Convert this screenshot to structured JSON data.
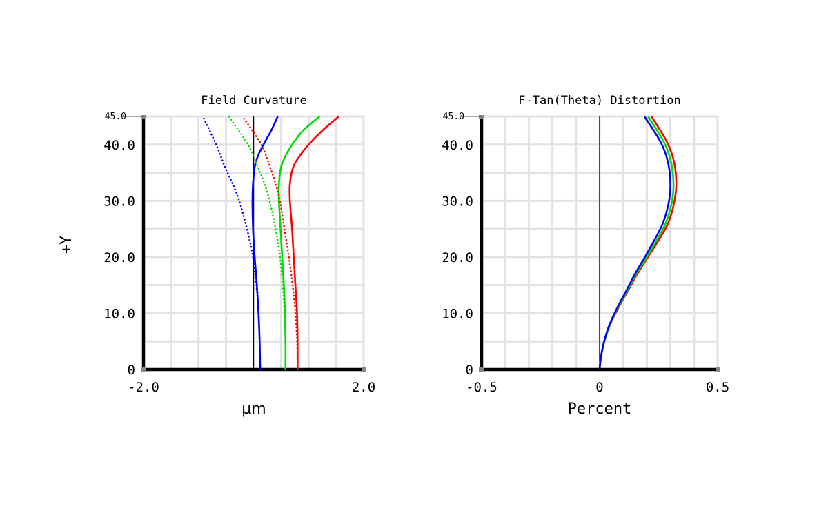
{
  "y_axis_label": "+Y",
  "chart_data": [
    {
      "type": "line",
      "title": "Field Curvature",
      "xlabel": "µm",
      "ylabel": "+Y",
      "xlim": [
        -2.0,
        2.0
      ],
      "ylim": [
        0,
        45.0
      ],
      "x_tick_labels": [
        "-2.0",
        "2.0"
      ],
      "y_tick_labels": [
        "0",
        "10.0",
        "20.0",
        "30.0",
        "40.0"
      ],
      "y_max_label": "45.0",
      "grid": true,
      "series": [
        {
          "color": "#0000ff",
          "style": "solid",
          "x": [
            0.12,
            0.11,
            0.09,
            0.06,
            0.02,
            -0.01,
            -0.02,
            -0.01,
            0.02,
            0.08,
            0.18,
            0.32,
            0.44
          ],
          "y": [
            0,
            5,
            10,
            15,
            20,
            25,
            30,
            33,
            36,
            38,
            40,
            42.5,
            45
          ]
        },
        {
          "color": "#00dd00",
          "style": "solid",
          "x": [
            0.58,
            0.58,
            0.57,
            0.55,
            0.52,
            0.49,
            0.46,
            0.46,
            0.5,
            0.58,
            0.7,
            0.9,
            1.2
          ],
          "y": [
            0,
            5,
            10,
            15,
            20,
            25,
            30,
            33,
            36,
            38,
            40,
            42.5,
            45
          ]
        },
        {
          "color": "#ff0000",
          "style": "solid",
          "x": [
            0.8,
            0.8,
            0.79,
            0.76,
            0.73,
            0.7,
            0.66,
            0.66,
            0.72,
            0.84,
            1.0,
            1.25,
            1.55
          ],
          "y": [
            0,
            5,
            10,
            15,
            20,
            25,
            30,
            33,
            36,
            38,
            40,
            42.5,
            45
          ]
        },
        {
          "color": "#0000ff",
          "style": "dotted",
          "x": [
            0.12,
            0.11,
            0.09,
            0.05,
            -0.01,
            -0.12,
            -0.26,
            -0.38,
            -0.52,
            -0.68,
            -0.92
          ],
          "y": [
            0,
            5,
            10,
            15,
            20,
            25,
            30,
            33,
            36,
            40,
            45
          ]
        },
        {
          "color": "#00dd00",
          "style": "dotted",
          "x": [
            0.58,
            0.58,
            0.56,
            0.53,
            0.48,
            0.4,
            0.29,
            0.2,
            0.08,
            -0.1,
            -0.45
          ],
          "y": [
            0,
            5,
            10,
            15,
            20,
            25,
            30,
            33,
            36,
            40,
            45
          ]
        },
        {
          "color": "#ff0000",
          "style": "dotted",
          "x": [
            0.8,
            0.79,
            0.76,
            0.71,
            0.64,
            0.56,
            0.48,
            0.4,
            0.3,
            0.14,
            -0.2
          ],
          "y": [
            0,
            5,
            10,
            15,
            20,
            25,
            30,
            33,
            36,
            40,
            45
          ]
        }
      ]
    },
    {
      "type": "line",
      "title": "F-Tan(Theta) Distortion",
      "xlabel": "Percent",
      "ylabel": "+Y",
      "xlim": [
        -0.5,
        0.5
      ],
      "ylim": [
        0,
        45.0
      ],
      "x_tick_labels": [
        "-0.5",
        "0",
        "0.5"
      ],
      "y_tick_labels": [
        "0",
        "10.0",
        "20.0",
        "30.0",
        "40.0"
      ],
      "y_max_label": "45.0",
      "grid": true,
      "series": [
        {
          "color": "#ff0000",
          "style": "solid",
          "x": [
            0.0,
            0.005,
            0.02,
            0.045,
            0.08,
            0.12,
            0.16,
            0.205,
            0.25,
            0.29,
            0.315,
            0.325,
            0.315,
            0.285,
            0.22
          ],
          "y": [
            0,
            2,
            5,
            8,
            11,
            14,
            17,
            20,
            23,
            26,
            29.5,
            33,
            37,
            40.5,
            45
          ]
        },
        {
          "color": "#00dd00",
          "style": "solid",
          "x": [
            0.0,
            0.005,
            0.02,
            0.044,
            0.078,
            0.117,
            0.156,
            0.2,
            0.242,
            0.28,
            0.305,
            0.313,
            0.302,
            0.272,
            0.205
          ],
          "y": [
            0,
            2,
            5,
            8,
            11,
            14,
            17,
            20,
            23,
            26,
            29.5,
            33,
            37,
            40.5,
            45
          ]
        },
        {
          "color": "#0000ff",
          "style": "solid",
          "x": [
            0.0,
            0.005,
            0.019,
            0.042,
            0.075,
            0.113,
            0.15,
            0.192,
            0.232,
            0.268,
            0.292,
            0.3,
            0.289,
            0.258,
            0.19
          ],
          "y": [
            0,
            2,
            5,
            8,
            11,
            14,
            17,
            20,
            23,
            26,
            29.5,
            33,
            37,
            40.5,
            45
          ]
        }
      ]
    }
  ]
}
